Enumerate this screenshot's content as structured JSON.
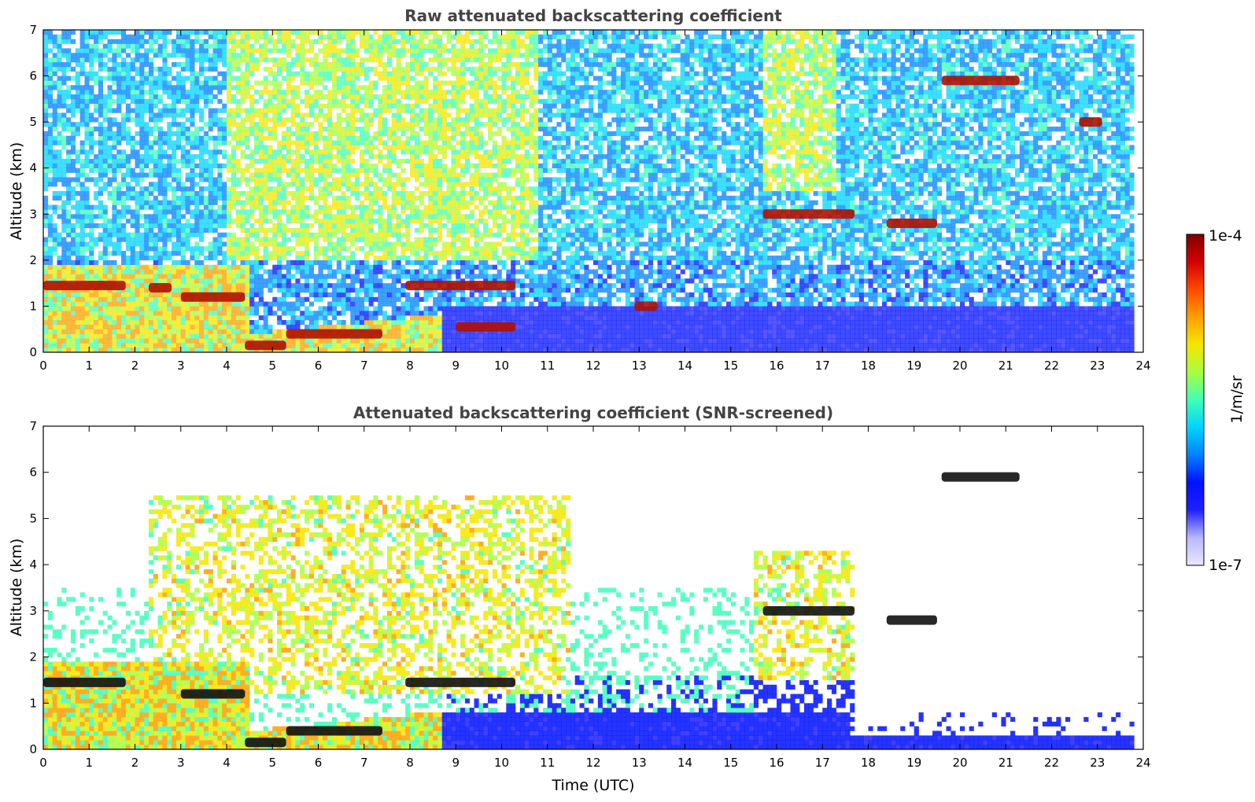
{
  "chart_data": [
    {
      "type": "heatmap",
      "title": "Raw attenuated backscattering coefficient",
      "xlabel": "",
      "ylabel": "Altitude (km)",
      "xlim": [
        0,
        24
      ],
      "ylim": [
        0,
        7
      ],
      "x_ticks": [
        0,
        1,
        2,
        3,
        4,
        5,
        6,
        7,
        8,
        9,
        10,
        11,
        12,
        13,
        14,
        15,
        16,
        17,
        18,
        19,
        20,
        21,
        22,
        23,
        24
      ],
      "y_ticks": [
        0,
        1,
        2,
        3,
        4,
        5,
        6,
        7
      ],
      "cloud_layers": [
        {
          "t_start": 0.0,
          "t_end": 1.8,
          "alt": 1.45
        },
        {
          "t_start": 2.3,
          "t_end": 2.8,
          "alt": 1.4
        },
        {
          "t_start": 3.0,
          "t_end": 4.4,
          "alt": 1.2
        },
        {
          "t_start": 4.4,
          "t_end": 5.3,
          "alt": 0.15
        },
        {
          "t_start": 5.3,
          "t_end": 7.4,
          "alt": 0.4
        },
        {
          "t_start": 7.9,
          "t_end": 10.3,
          "alt": 1.45
        },
        {
          "t_start": 9.0,
          "t_end": 10.3,
          "alt": 0.55
        },
        {
          "t_start": 12.9,
          "t_end": 13.4,
          "alt": 1.0
        },
        {
          "t_start": 15.7,
          "t_end": 17.7,
          "alt": 3.0
        },
        {
          "t_start": 18.4,
          "t_end": 19.5,
          "alt": 2.8
        },
        {
          "t_start": 19.6,
          "t_end": 21.3,
          "alt": 5.9
        },
        {
          "t_start": 22.6,
          "t_end": 23.1,
          "alt": 5.0
        }
      ]
    },
    {
      "type": "heatmap",
      "title": "Attenuated backscattering coefficient (SNR-screened)",
      "xlabel": "Time (UTC)",
      "ylabel": "Altitude (km)",
      "xlim": [
        0,
        24
      ],
      "ylim": [
        0,
        7
      ],
      "x_ticks": [
        0,
        1,
        2,
        3,
        4,
        5,
        6,
        7,
        8,
        9,
        10,
        11,
        12,
        13,
        14,
        15,
        16,
        17,
        18,
        19,
        20,
        21,
        22,
        23,
        24
      ],
      "y_ticks": [
        0,
        1,
        2,
        3,
        4,
        5,
        6,
        7
      ],
      "cloud_layers": [
        {
          "t_start": 0.0,
          "t_end": 1.8,
          "alt": 1.45
        },
        {
          "t_start": 3.0,
          "t_end": 4.4,
          "alt": 1.2
        },
        {
          "t_start": 4.4,
          "t_end": 5.3,
          "alt": 0.15
        },
        {
          "t_start": 5.3,
          "t_end": 7.4,
          "alt": 0.4
        },
        {
          "t_start": 7.9,
          "t_end": 10.3,
          "alt": 1.45
        },
        {
          "t_start": 15.7,
          "t_end": 17.7,
          "alt": 3.0
        },
        {
          "t_start": 18.4,
          "t_end": 19.5,
          "alt": 2.8
        },
        {
          "t_start": 19.6,
          "t_end": 21.3,
          "alt": 5.9
        }
      ]
    }
  ],
  "colorbar": {
    "label": "1/m/sr",
    "max_label": "1e-4",
    "min_label": "1e-7",
    "scale": "log",
    "colors": [
      "#7f0000",
      "#d40000",
      "#ff4a00",
      "#ffa000",
      "#f5e600",
      "#a6ff3f",
      "#3fffb8",
      "#00d4ff",
      "#0080ff",
      "#0010ff",
      "#2020ff",
      "#b8b8ff",
      "#e8e8ff"
    ]
  }
}
